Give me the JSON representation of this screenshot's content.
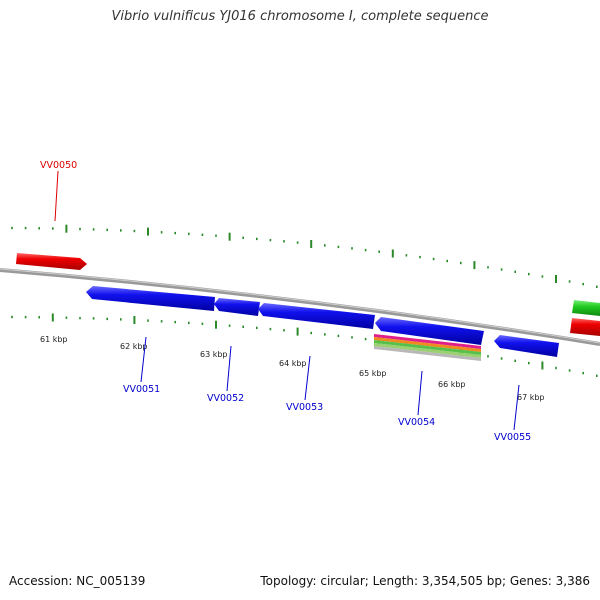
{
  "title": "Vibrio vulnificus YJ016 chromosome I, complete sequence",
  "footer": {
    "accession": "Accession: NC_005139",
    "topology": "Topology: circular; Length: 3,354,505 bp; Genes: 3,386"
  },
  "kbp_labels": [
    "61 kbp",
    "62 kbp",
    "63 kbp",
    "64 kbp",
    "65 kbp",
    "66 kbp",
    "67 kbp"
  ],
  "genes": [
    {
      "name": "VV0050",
      "color": "#dd0000",
      "strand": "forward"
    },
    {
      "name": "VV0051",
      "color": "#0000cc",
      "strand": "reverse"
    },
    {
      "name": "VV0052",
      "color": "#0000cc",
      "strand": "reverse"
    },
    {
      "name": "VV0053",
      "color": "#0000cc",
      "strand": "reverse"
    },
    {
      "name": "VV0054",
      "color": "#0000cc",
      "strand": "reverse"
    },
    {
      "name": "VV0055",
      "color": "#0000cc",
      "strand": "reverse"
    }
  ],
  "colors": {
    "backbone": "#888888",
    "tick": "#2a8a2a",
    "forward_gene": "#ee0000",
    "reverse_gene": "#1111ee",
    "edge_green": "#22cc22"
  }
}
